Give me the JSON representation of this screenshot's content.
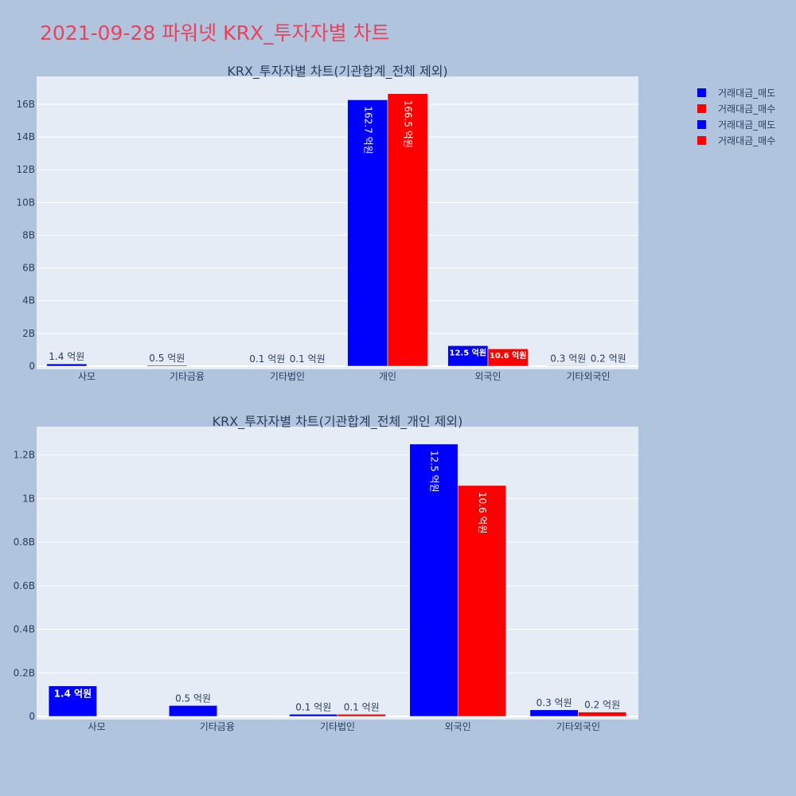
{
  "page": {
    "title": "2021-09-28 파워넷 KRX_투자자별 차트"
  },
  "colors": {
    "sell": "#0000ff",
    "buy": "#ff0000",
    "plot_bg": "#e5ecf6",
    "page_bg": "#b0c4de",
    "text": "#2a3f5f"
  },
  "legend": {
    "items": [
      {
        "label": "거래대금_매도",
        "color": "#0000ff"
      },
      {
        "label": "거래대금_매수",
        "color": "#ff0000"
      },
      {
        "label": "거래대금_매도",
        "color": "#0000ff"
      },
      {
        "label": "거래대금_매수",
        "color": "#ff0000"
      }
    ]
  },
  "chart_data": [
    {
      "type": "bar",
      "title": "KRX_투자자별 차트(기관합계_전체 제외)",
      "categories": [
        "사모",
        "기타금융",
        "기타법인",
        "개인",
        "외국인",
        "기타외국인"
      ],
      "series": [
        {
          "name": "거래대금_매도",
          "color": "#0000ff",
          "values": [
            140000000,
            50000000,
            10000000,
            16270000000,
            1250000000,
            30000000
          ],
          "labels": [
            "1.4 억원",
            "0.5 억원",
            "0.1 억원",
            "162.7 억원",
            "12.5 억원",
            "0.3 억원"
          ]
        },
        {
          "name": "거래대금_매수",
          "color": "#ff0000",
          "values": [
            0,
            0,
            10000000,
            16650000000,
            1060000000,
            20000000
          ],
          "labels": [
            "",
            "",
            "0.1 억원",
            "166.5 억원",
            "10.6 억원",
            "0.2 억원"
          ]
        }
      ],
      "ylim": [
        0,
        17700000000
      ],
      "yticks": [
        0,
        2000000000,
        4000000000,
        6000000000,
        8000000000,
        10000000000,
        12000000000,
        14000000000,
        16000000000
      ],
      "ytick_labels": [
        "0",
        "2B",
        "4B",
        "6B",
        "8B",
        "10B",
        "12B",
        "14B",
        "16B"
      ],
      "grid": true
    },
    {
      "type": "bar",
      "title": "KRX_투자자별 차트(기관합계_전체_개인 제외)",
      "categories": [
        "사모",
        "기타금융",
        "기타법인",
        "외국인",
        "기타외국인"
      ],
      "series": [
        {
          "name": "거래대금_매도",
          "color": "#0000ff",
          "values": [
            140000000,
            50000000,
            10000000,
            1250000000,
            30000000
          ],
          "labels": [
            "1.4 억원",
            "0.5 억원",
            "0.1 억원",
            "12.5 억원",
            "0.3 억원"
          ]
        },
        {
          "name": "거래대금_매수",
          "color": "#ff0000",
          "values": [
            0,
            0,
            10000000,
            1060000000,
            20000000
          ],
          "labels": [
            "",
            "",
            "0.1 억원",
            "10.6 억원",
            "0.2 억원"
          ]
        }
      ],
      "ylim": [
        0,
        1330000000
      ],
      "yticks": [
        0,
        200000000,
        400000000,
        600000000,
        800000000,
        1000000000,
        1200000000
      ],
      "ytick_labels": [
        "0",
        "0.2B",
        "0.4B",
        "0.6B",
        "0.8B",
        "1B",
        "1.2B"
      ],
      "grid": true
    }
  ]
}
